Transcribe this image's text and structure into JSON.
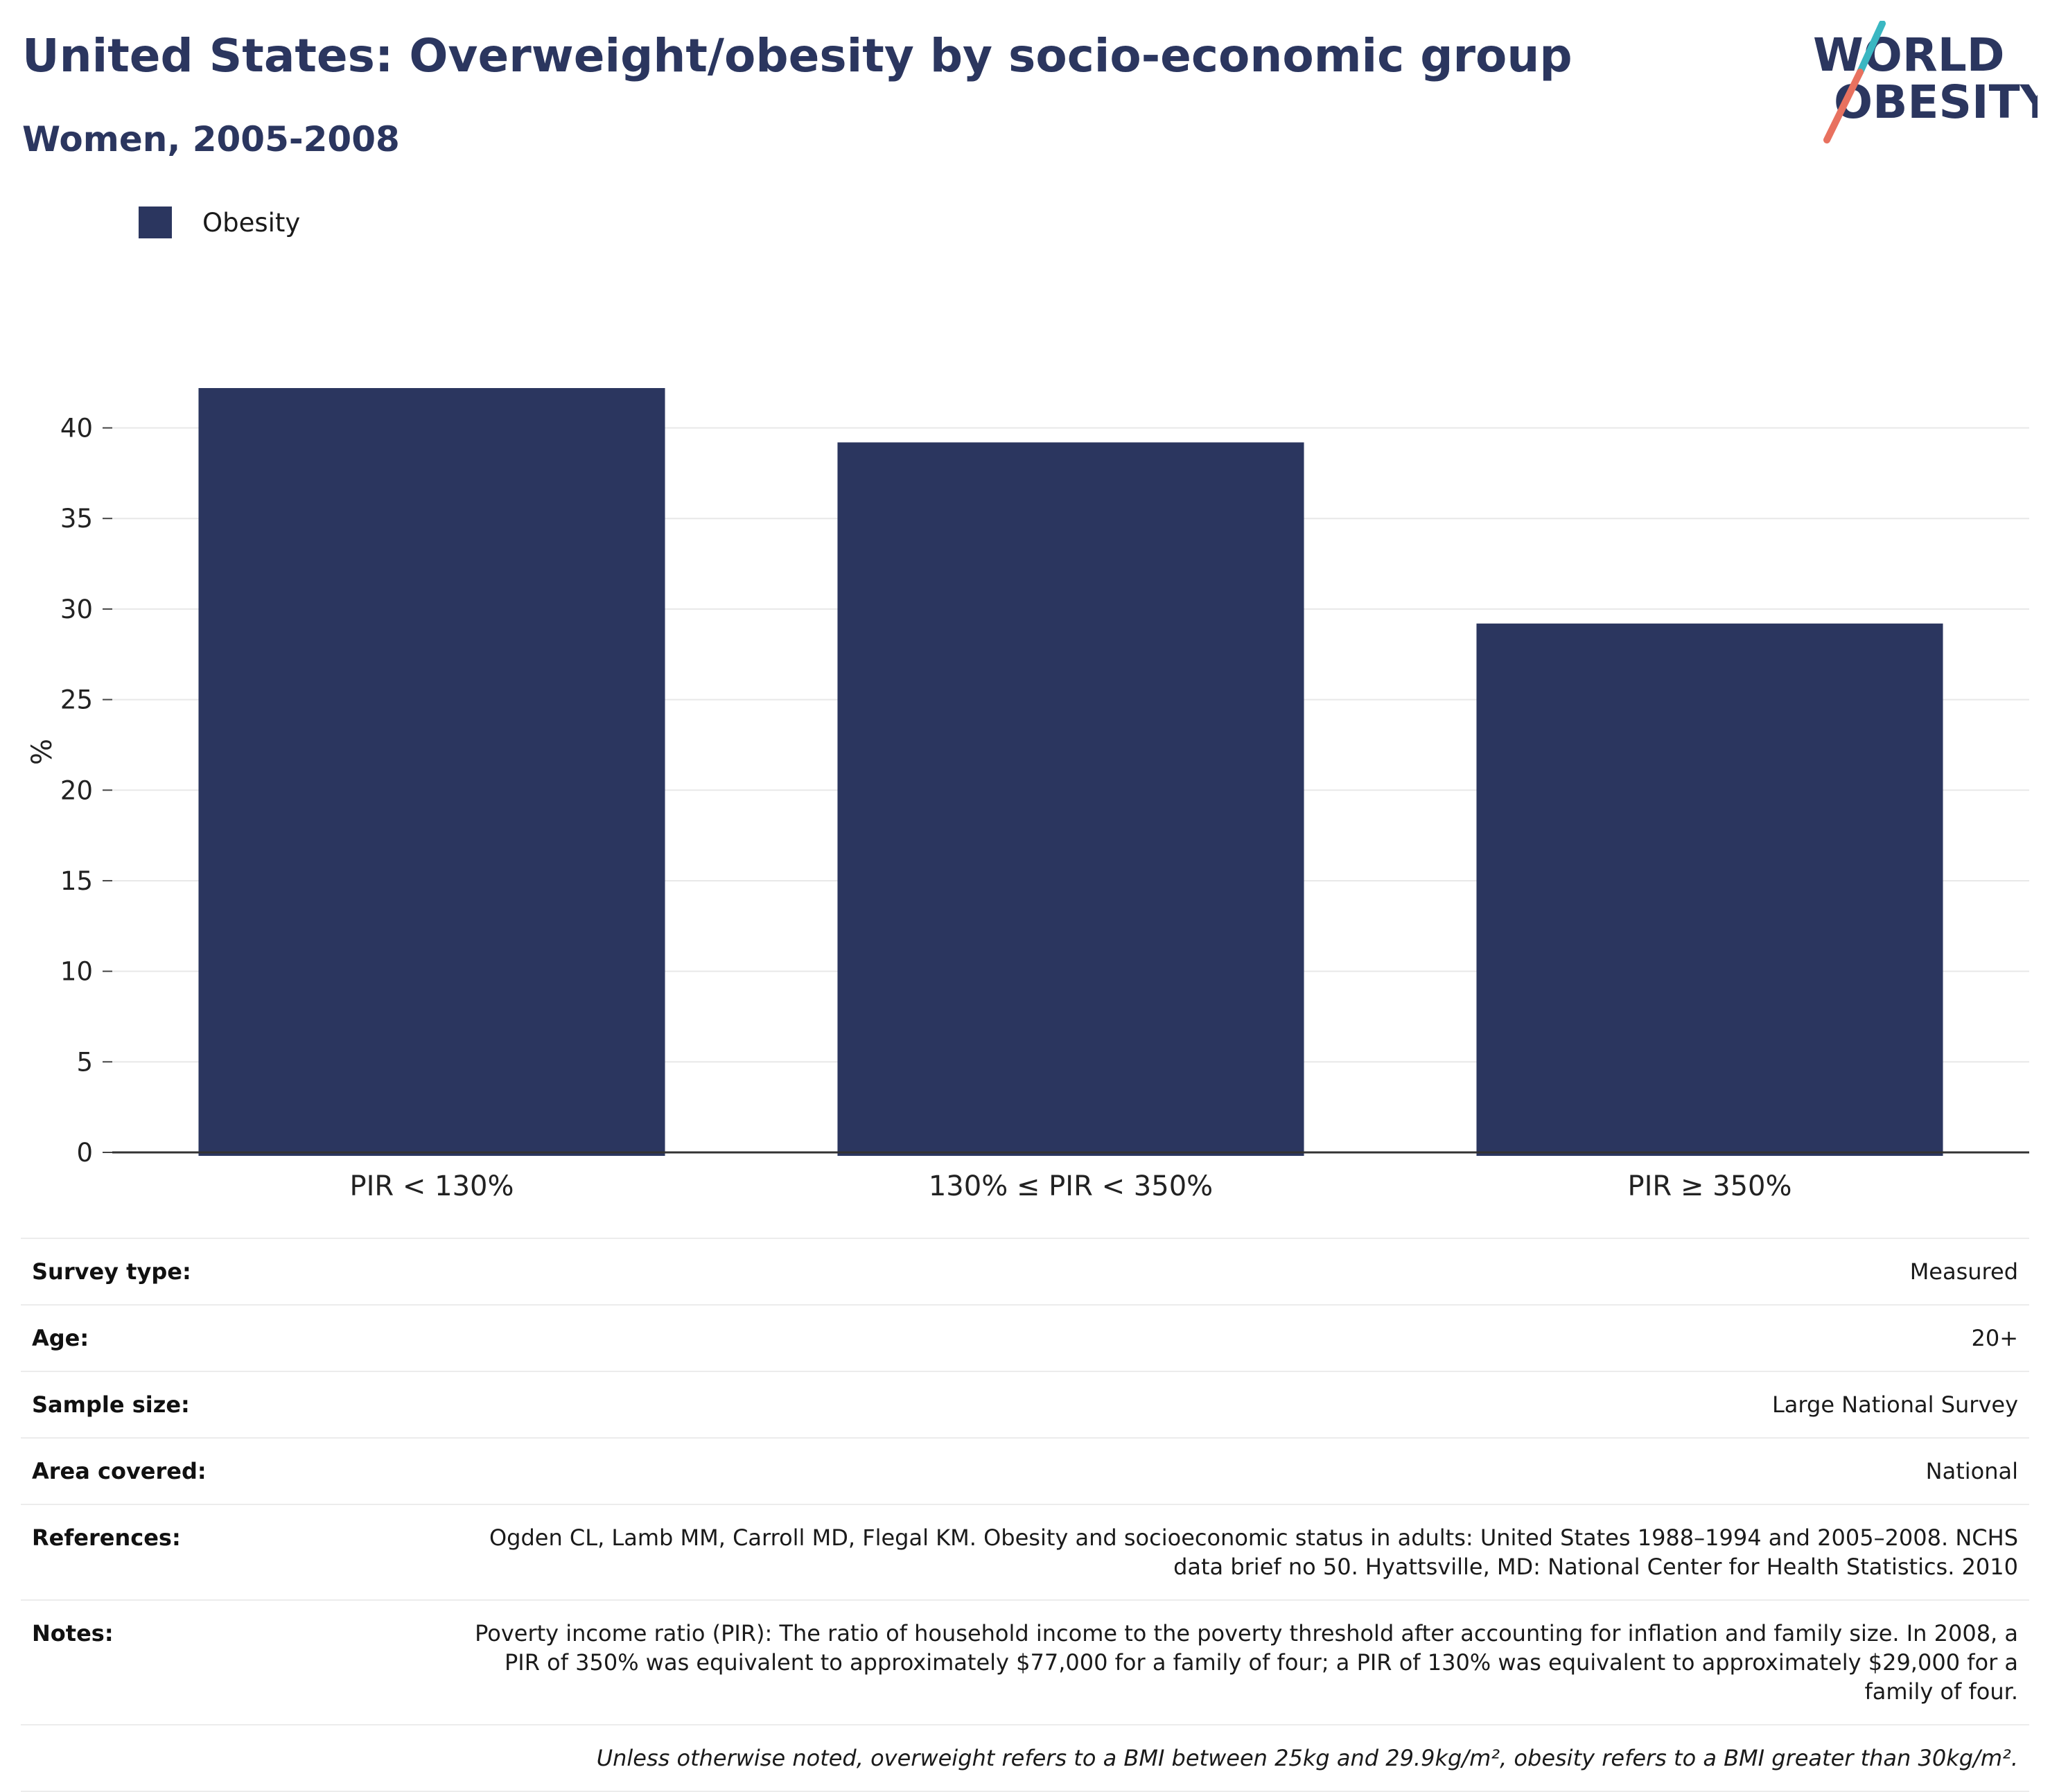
{
  "header": {
    "title": "United States: Overweight/obesity by socio-economic group",
    "subtitle": "Women, 2005-2008"
  },
  "logo": {
    "line1": "WORLD",
    "line2": "OBESITY"
  },
  "colors": {
    "bar": "#2b365f",
    "title": "#2b365f",
    "logo_teal": "#3ab7c2",
    "logo_coral": "#e8715f"
  },
  "chart_data": {
    "type": "bar",
    "categories": [
      "PIR < 130%",
      "130% ≤ PIR < 350%",
      "PIR ≥ 350%"
    ],
    "series": [
      {
        "name": "Obesity",
        "values": [
          42.2,
          39.2,
          29.2
        ]
      }
    ],
    "ylabel": "%",
    "ylim": [
      0,
      42.2
    ],
    "yticks": [
      0,
      5,
      10,
      15,
      20,
      25,
      30,
      35,
      40
    ],
    "grid": true,
    "legend_position": "top-left"
  },
  "meta": {
    "rows": [
      {
        "label": "Survey type:",
        "value": "Measured"
      },
      {
        "label": "Age:",
        "value": "20+"
      },
      {
        "label": "Sample size:",
        "value": "Large National Survey"
      },
      {
        "label": "Area covered:",
        "value": "National"
      },
      {
        "label": "References:",
        "value": "Ogden CL, Lamb MM, Carroll MD, Flegal KM. Obesity and socioeconomic status in adults: United States 1988–1994 and 2005–2008. NCHS data brief no 50. Hyattsville, MD: National Center for Health Statistics. 2010"
      },
      {
        "label": "Notes:",
        "value": "Poverty income ratio (PIR): The ratio of household income to the poverty threshold after accounting for inflation and family size. In 2008, a PIR of 350% was equivalent to approximately $77,000 for a family of four; a PIR of 130% was equivalent to approximately $29,000 for a family of four."
      }
    ],
    "footnote": "Unless otherwise noted, overweight refers to a BMI between 25kg and 29.9kg/m², obesity refers to a BMI greater than 30kg/m²."
  }
}
